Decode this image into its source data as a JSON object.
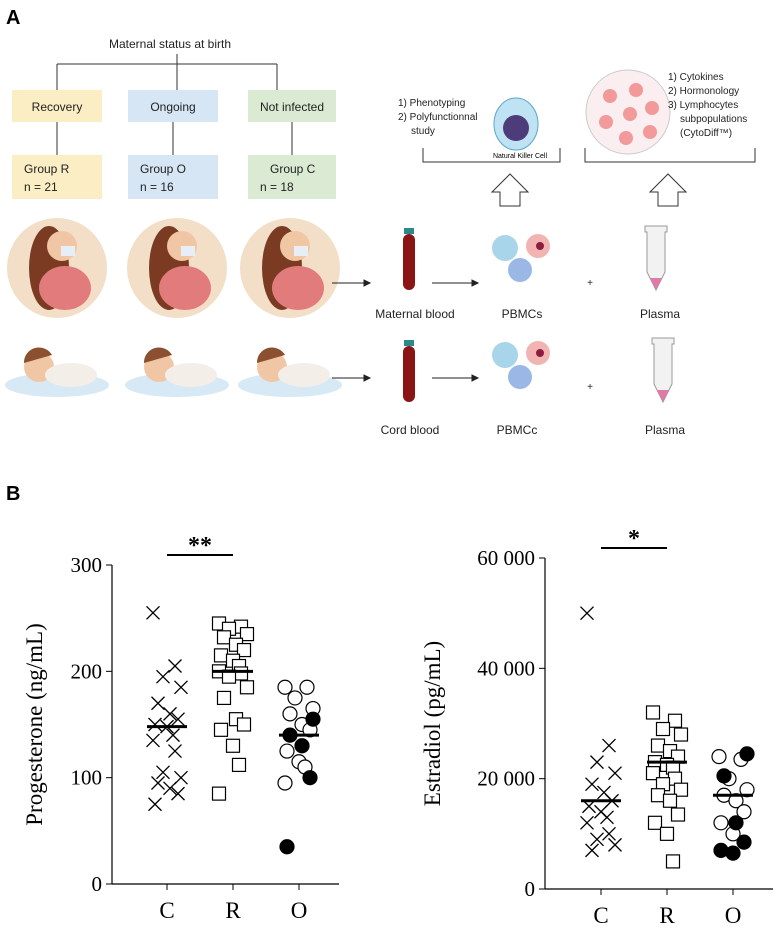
{
  "panel_a": {
    "label": "A",
    "title": "Maternal status at birth",
    "status": [
      "Recovery",
      "Ongoing",
      "Not infected"
    ],
    "groups": [
      {
        "name": "Group R",
        "n": "n = 21"
      },
      {
        "name": "Group O",
        "n": "n = 16"
      },
      {
        "name": "Group C",
        "n": "n = 18"
      }
    ],
    "nk_study": [
      "1) Phenotyping",
      "2) Polyfunctionnal",
      "study"
    ],
    "nk_cell": "Natural Killer Cell",
    "plasma_study": [
      "1) Cytokines",
      "2) Hormonology",
      "3) Lymphocytes",
      "subpopulations",
      "(CytoDiff™)"
    ],
    "maternal": {
      "blood": "Maternal blood",
      "cells": "PBMCs",
      "plasma": "Plasma",
      "plus": "+"
    },
    "cord": {
      "blood": "Cord blood",
      "cells": "PBMCc",
      "plasma": "Plasma",
      "plus": "+"
    }
  },
  "panel_b_label": "B",
  "chart_data": [
    {
      "type": "strip",
      "ylabel": "Progesterone (ng/mL)",
      "categories": [
        "C",
        "R",
        "O"
      ],
      "ylim": [
        0,
        300
      ],
      "yticks": [
        0,
        100,
        200,
        300
      ],
      "annotation": "**",
      "color": "#000000",
      "series": [
        {
          "marker": "cross",
          "values": [
            255,
            205,
            195,
            185,
            170,
            160,
            155,
            150,
            148,
            140,
            135,
            125,
            105,
            100,
            95,
            90,
            85,
            75
          ]
        },
        {
          "marker": "square",
          "values": [
            245,
            242,
            240,
            235,
            232,
            225,
            220,
            215,
            210,
            205,
            200,
            198,
            195,
            185,
            175,
            155,
            150,
            145,
            130,
            112,
            85
          ]
        },
        {
          "marker": "circle",
          "values": [
            185,
            185,
            175,
            165,
            160,
            150,
            145,
            125,
            115,
            110,
            95
          ],
          "filled_values": [
            155,
            140,
            130,
            100,
            35
          ]
        }
      ],
      "medians": [
        148,
        200,
        140
      ]
    },
    {
      "type": "strip",
      "ylabel": "Estradiol (pg/mL)",
      "categories": [
        "C",
        "R",
        "O"
      ],
      "ylim": [
        0,
        60000
      ],
      "yticks": [
        0,
        {
          "value": 20000,
          "label": "20 000"
        },
        {
          "value": 40000,
          "label": "40 000"
        },
        {
          "value": 60000,
          "label": "60 000"
        }
      ],
      "annotation": "*",
      "color": "#000000",
      "series": [
        {
          "marker": "cross",
          "values": [
            50000,
            26000,
            23000,
            21000,
            19000,
            17500,
            16000,
            15000,
            14000,
            13000,
            12000,
            10000,
            9000,
            8000,
            7000
          ]
        },
        {
          "marker": "square",
          "values": [
            32000,
            30500,
            29000,
            28000,
            26000,
            25000,
            24000,
            23000,
            22500,
            22000,
            21000,
            20000,
            19000,
            18000,
            17000,
            16000,
            13500,
            12000,
            10000,
            5000
          ]
        },
        {
          "marker": "circle",
          "values": [
            24000,
            23500,
            20000,
            18000,
            17000,
            16000,
            14000,
            12000,
            10000
          ],
          "filled_values": [
            24500,
            20500,
            12000,
            8500,
            7000,
            6500
          ]
        }
      ],
      "medians": [
        16000,
        23000,
        17000
      ]
    }
  ]
}
